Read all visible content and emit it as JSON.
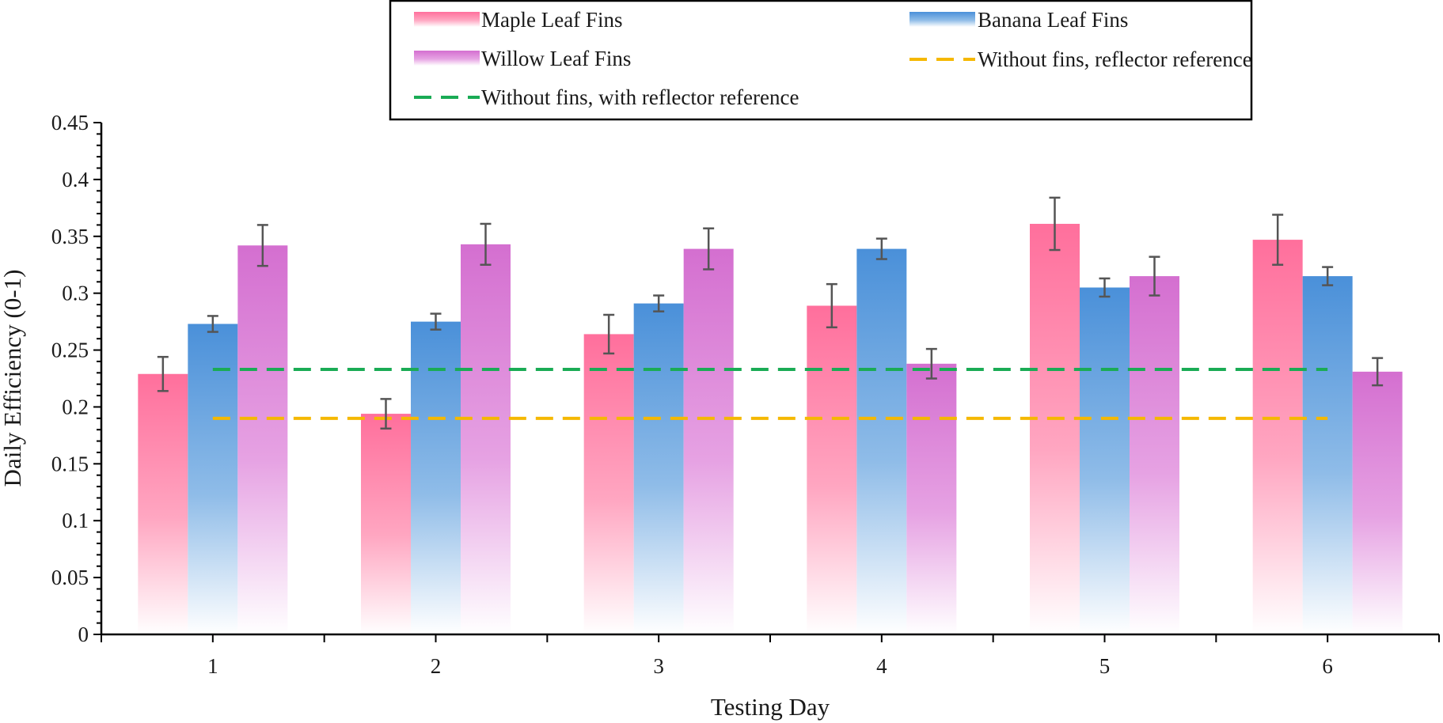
{
  "chart_data": {
    "type": "bar",
    "xlabel": "Testing Day",
    "ylabel": "Daily Efficiency (0-1)",
    "categories": [
      "1",
      "2",
      "3",
      "4",
      "5",
      "6"
    ],
    "ylim": [
      0,
      0.45
    ],
    "yticks": [
      0,
      0.05,
      0.1,
      0.15,
      0.2,
      0.25,
      0.3,
      0.35,
      0.4,
      0.45
    ],
    "ytick_labels": [
      "0",
      "0.05",
      "0.1",
      "0.15",
      "0.2",
      "0.25",
      "0.3",
      "0.35",
      "0.4",
      "0.45"
    ],
    "series": [
      {
        "name": "Maple Leaf Fins",
        "color": "#ff6f9c",
        "values": [
          0.229,
          0.194,
          0.264,
          0.289,
          0.361,
          0.347
        ],
        "errors": [
          0.015,
          0.013,
          0.017,
          0.019,
          0.023,
          0.022
        ]
      },
      {
        "name": "Banana Leaf Fins",
        "color": "#4a90d9",
        "values": [
          0.273,
          0.275,
          0.291,
          0.339,
          0.305,
          0.315
        ],
        "errors": [
          0.007,
          0.007,
          0.007,
          0.009,
          0.008,
          0.008
        ]
      },
      {
        "name": "Willow Leaf Fins",
        "color": "#d46fd0",
        "values": [
          0.342,
          0.343,
          0.339,
          0.238,
          0.315,
          0.231
        ],
        "errors": [
          0.018,
          0.018,
          0.018,
          0.013,
          0.017,
          0.012
        ]
      }
    ],
    "reference_lines": [
      {
        "name": "Without fins, reflector reference",
        "value": 0.19,
        "color": "#f5b800",
        "style": "dashed"
      },
      {
        "name": "Without fins, with reflector reference",
        "value": 0.233,
        "color": "#1aab55",
        "style": "dashed"
      }
    ],
    "legend": {
      "position": "top",
      "entries": [
        "Maple Leaf Fins",
        "Banana Leaf Fins",
        "Willow Leaf Fins",
        "Without fins, reflector reference",
        "Without fins, with reflector reference"
      ]
    }
  }
}
